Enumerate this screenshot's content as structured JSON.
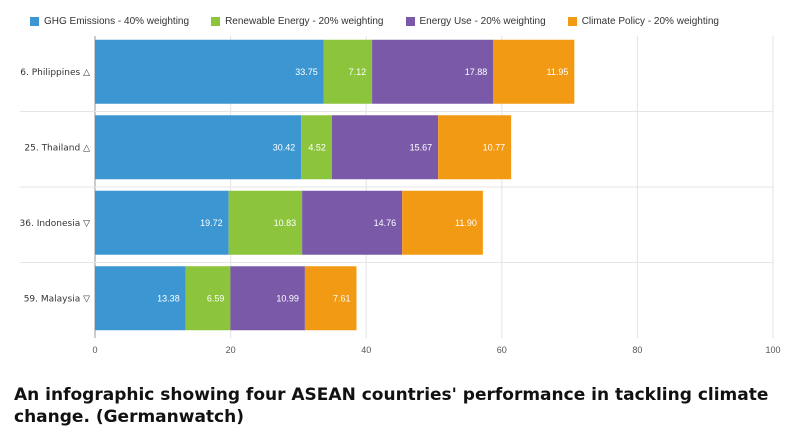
{
  "chart_data": {
    "type": "bar",
    "orientation": "horizontal",
    "stacked": true,
    "categories": [
      "6. Philippines △",
      "25. Thailand △",
      "36. Indonesia ▽",
      "59. Malaysia ▽"
    ],
    "series": [
      {
        "name": "GHG Emissions - 40% weighting",
        "color": "#3b96d2",
        "values": [
          33.75,
          30.42,
          19.72,
          13.38
        ]
      },
      {
        "name": "Renewable Energy - 20% weighting",
        "color": "#8cc43c",
        "values": [
          7.12,
          4.52,
          10.83,
          6.59
        ]
      },
      {
        "name": "Energy Use - 20% weighting",
        "color": "#7a5aa8",
        "values": [
          17.88,
          15.67,
          14.76,
          10.99
        ]
      },
      {
        "name": "Climate Policy - 20% weighting",
        "color": "#f39a14",
        "values": [
          11.95,
          10.77,
          11.9,
          7.61
        ]
      }
    ],
    "value_labels": [
      [
        "33.75",
        "30.42",
        "19.72",
        "13.38"
      ],
      [
        "7.12",
        "4.52",
        "10.83",
        "6.59"
      ],
      [
        "17.88",
        "15.67",
        "14.76",
        "10.99"
      ],
      [
        "11.95",
        "10.77",
        "11.90",
        "7.61"
      ]
    ],
    "xlim": [
      0,
      100
    ],
    "xticks": [
      0,
      20,
      40,
      60,
      80,
      100
    ],
    "grid": true,
    "legend": "top-left"
  },
  "caption": "An infographic showing four ASEAN countries' performance in tackling climate change. (Germanwatch)"
}
